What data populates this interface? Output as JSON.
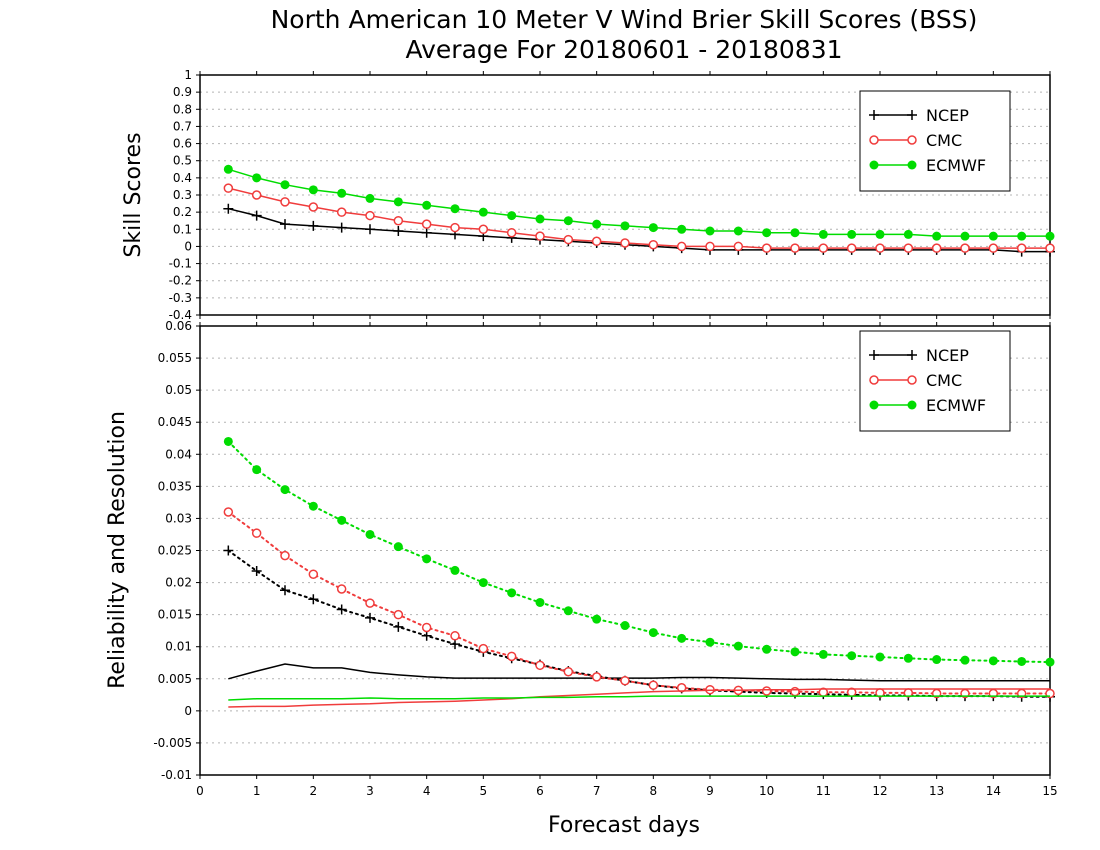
{
  "chart_data": [
    {
      "type": "line",
      "title": "North American 10 Meter V Wind Brier Skill Scores (BSS)",
      "subtitle": "Average For 20180601 - 20180831",
      "xlabel": "Forecast days",
      "ylabel": "Skill Scores",
      "xlim": [
        0,
        15
      ],
      "ylim": [
        -0.4,
        1
      ],
      "xticks": [
        0,
        1,
        2,
        3,
        4,
        5,
        6,
        7,
        8,
        9,
        10,
        11,
        12,
        13,
        14,
        15
      ],
      "yticks": [
        -0.4,
        -0.3,
        -0.2,
        -0.1,
        0,
        0.1,
        0.2,
        0.3,
        0.4,
        0.5,
        0.6,
        0.7,
        0.8,
        0.9,
        1
      ],
      "grid": "horizontal dotted",
      "legend_position": "top-right",
      "x": [
        0.5,
        1,
        1.5,
        2,
        2.5,
        3,
        3.5,
        4,
        4.5,
        5,
        5.5,
        6,
        6.5,
        7,
        7.5,
        8,
        8.5,
        9,
        9.5,
        10,
        10.5,
        11,
        11.5,
        12,
        12.5,
        13,
        13.5,
        14,
        14.5,
        15
      ],
      "series": [
        {
          "name": "NCEP",
          "color": "#000000",
          "marker": "plus",
          "line": "solid",
          "values": [
            0.22,
            0.18,
            0.13,
            0.12,
            0.11,
            0.1,
            0.09,
            0.08,
            0.07,
            0.06,
            0.05,
            0.04,
            0.03,
            0.02,
            0.01,
            0.0,
            -0.01,
            -0.02,
            -0.02,
            -0.02,
            -0.02,
            -0.02,
            -0.02,
            -0.02,
            -0.02,
            -0.02,
            -0.02,
            -0.02,
            -0.03,
            -0.03
          ]
        },
        {
          "name": "CMC",
          "color": "#f03c3c",
          "marker": "open-circle",
          "line": "solid",
          "values": [
            0.34,
            0.3,
            0.26,
            0.23,
            0.2,
            0.18,
            0.15,
            0.13,
            0.11,
            0.1,
            0.08,
            0.06,
            0.04,
            0.03,
            0.02,
            0.01,
            0.0,
            0.0,
            0.0,
            -0.01,
            -0.01,
            -0.01,
            -0.01,
            -0.01,
            -0.01,
            -0.01,
            -0.01,
            -0.01,
            -0.01,
            -0.01
          ]
        },
        {
          "name": "ECMWF",
          "color": "#00dc00",
          "marker": "filled-circle",
          "line": "solid",
          "values": [
            0.45,
            0.4,
            0.36,
            0.33,
            0.31,
            0.28,
            0.26,
            0.24,
            0.22,
            0.2,
            0.18,
            0.16,
            0.15,
            0.13,
            0.12,
            0.11,
            0.1,
            0.09,
            0.09,
            0.08,
            0.08,
            0.07,
            0.07,
            0.07,
            0.07,
            0.06,
            0.06,
            0.06,
            0.06,
            0.06
          ]
        }
      ]
    },
    {
      "type": "line",
      "xlabel": "Forecast days",
      "ylabel": "Reliability and Resolution",
      "xlim": [
        0,
        15
      ],
      "ylim": [
        -0.01,
        0.06
      ],
      "xticks": [
        0,
        1,
        2,
        3,
        4,
        5,
        6,
        7,
        8,
        9,
        10,
        11,
        12,
        13,
        14,
        15
      ],
      "yticks": [
        -0.01,
        -0.005,
        0,
        0.005,
        0.01,
        0.015,
        0.02,
        0.025,
        0.03,
        0.035,
        0.04,
        0.045,
        0.05,
        0.055,
        0.06
      ],
      "grid": "horizontal dotted",
      "legend_position": "top-right",
      "x": [
        0.5,
        1,
        1.5,
        2,
        2.5,
        3,
        3.5,
        4,
        4.5,
        5,
        5.5,
        6,
        6.5,
        7,
        7.5,
        8,
        8.5,
        9,
        9.5,
        10,
        10.5,
        11,
        11.5,
        12,
        12.5,
        13,
        13.5,
        14,
        14.5,
        15
      ],
      "series": [
        {
          "name": "NCEP",
          "color": "#000000",
          "marker": "plus",
          "line": "dotted",
          "values": [
            0.025,
            0.0218,
            0.0188,
            0.0174,
            0.0158,
            0.0145,
            0.0131,
            0.0117,
            0.0104,
            0.0092,
            0.0082,
            0.0072,
            0.0062,
            0.0054,
            0.0047,
            0.004,
            0.0035,
            0.0032,
            0.003,
            0.0028,
            0.0027,
            0.0026,
            0.0025,
            0.0024,
            0.0024,
            0.0023,
            0.0023,
            0.0023,
            0.0022,
            0.0022
          ]
        },
        {
          "name": "NCEP",
          "color": "#000000",
          "marker": "none",
          "line": "solid",
          "values": [
            0.005,
            0.0062,
            0.0073,
            0.0067,
            0.0067,
            0.006,
            0.0056,
            0.0053,
            0.0051,
            0.0051,
            0.0051,
            0.0051,
            0.0051,
            0.0051,
            0.0051,
            0.0051,
            0.0052,
            0.0052,
            0.0051,
            0.005,
            0.0049,
            0.0049,
            0.0048,
            0.0047,
            0.0047,
            0.0047,
            0.0047,
            0.0047,
            0.0047,
            0.0047
          ]
        },
        {
          "name": "CMC",
          "color": "#f03c3c",
          "marker": "open-circle",
          "line": "dotted",
          "values": [
            0.031,
            0.0277,
            0.0242,
            0.0213,
            0.019,
            0.0168,
            0.015,
            0.013,
            0.0117,
            0.0097,
            0.0085,
            0.0071,
            0.0061,
            0.0053,
            0.0047,
            0.004,
            0.0036,
            0.0033,
            0.0032,
            0.0031,
            0.003,
            0.0029,
            0.0029,
            0.0028,
            0.0028,
            0.0027,
            0.0027,
            0.0027,
            0.0027,
            0.0027
          ]
        },
        {
          "name": "CMC",
          "color": "#f03c3c",
          "marker": "none",
          "line": "solid",
          "values": [
            0.0006,
            0.0007,
            0.0007,
            0.0009,
            0.001,
            0.0011,
            0.0013,
            0.0014,
            0.0015,
            0.0017,
            0.0019,
            0.0022,
            0.0024,
            0.0026,
            0.0028,
            0.003,
            0.0031,
            0.0032,
            0.0032,
            0.0033,
            0.0033,
            0.0034,
            0.0034,
            0.0034,
            0.0034,
            0.0034,
            0.0034,
            0.0034,
            0.0034,
            0.0034
          ]
        },
        {
          "name": "ECMWF",
          "color": "#00dc00",
          "marker": "filled-circle",
          "line": "dotted",
          "values": [
            0.042,
            0.0376,
            0.0345,
            0.0319,
            0.0297,
            0.0275,
            0.0256,
            0.0237,
            0.0219,
            0.02,
            0.0184,
            0.0169,
            0.0156,
            0.0143,
            0.0133,
            0.0122,
            0.0113,
            0.0107,
            0.0101,
            0.0096,
            0.0092,
            0.0088,
            0.0086,
            0.0084,
            0.0082,
            0.008,
            0.0079,
            0.0078,
            0.0077,
            0.0076
          ]
        },
        {
          "name": "ECMWF",
          "color": "#00dc00",
          "marker": "none",
          "line": "solid",
          "values": [
            0.0017,
            0.0019,
            0.0019,
            0.0019,
            0.0019,
            0.002,
            0.0019,
            0.0019,
            0.0019,
            0.002,
            0.002,
            0.0021,
            0.0021,
            0.0022,
            0.0022,
            0.0023,
            0.0023,
            0.0023,
            0.0023,
            0.0023,
            0.0023,
            0.0023,
            0.0023,
            0.0023,
            0.0023,
            0.0023,
            0.0023,
            0.0023,
            0.0023,
            0.0023
          ]
        }
      ]
    }
  ]
}
